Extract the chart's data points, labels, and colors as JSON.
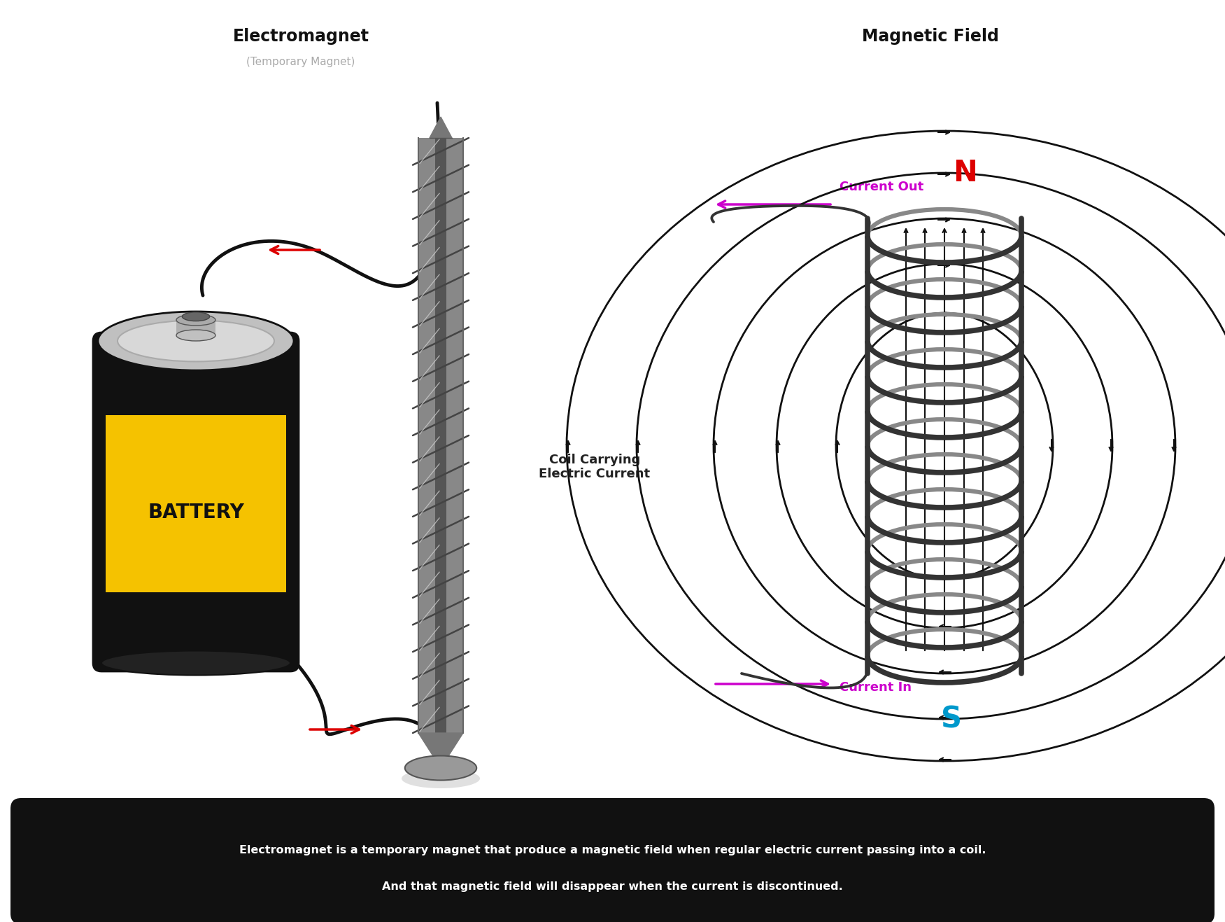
{
  "title_left": "Electromagnet",
  "subtitle_left": "(Temporary Magnet)",
  "title_right": "Magnetic Field",
  "label_battery": "BATTERY",
  "label_coil": "Coil Carrying\nElectric Current",
  "label_current_out": "Current Out",
  "label_current_in": "Current In",
  "label_N": "N",
  "label_S": "S",
  "caption_line1": "Electromagnet is a temporary magnet that produce a magnetic field when regular electric current passing into a coil.",
  "caption_line2": "And that magnetic field will disappear when the current is discontinued.",
  "bg_color": "#ffffff",
  "battery_black": "#111111",
  "battery_yellow": "#F5C200",
  "battery_text_color": "#111111",
  "caption_bg": "#111111",
  "caption_text_color": "#ffffff",
  "coil_color": "#333333",
  "coil_inner_color": "#888888",
  "field_line_color": "#111111",
  "wire_color": "#111111",
  "red_arrow_color": "#dd0000",
  "current_color": "#cc00cc",
  "N_color": "#dd0000",
  "S_color": "#0099cc"
}
